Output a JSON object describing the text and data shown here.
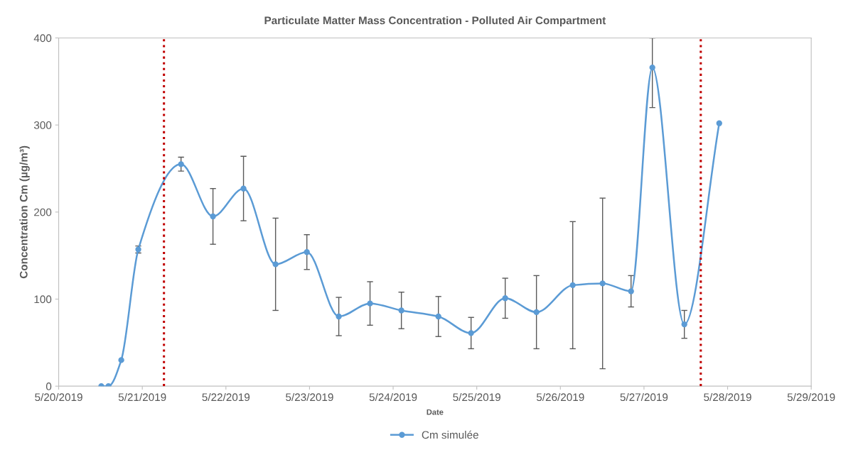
{
  "chart_data": {
    "type": "line",
    "title": "Particulate Matter Mass Concentration - Polluted Air Compartment",
    "xlabel": "Date",
    "ylabel": "Concentration Cm (µg/m³)",
    "x": [
      "2019-05-20T12:14",
      "2019-05-20T14:17",
      "2019-05-20T17:58",
      "2019-05-20T22:51",
      "2019-05-21T11:07",
      "2019-05-21T20:17",
      "2019-05-22T05:03",
      "2019-05-22T14:15",
      "2019-05-22T23:14",
      "2019-05-23T08:24",
      "2019-05-23T17:22",
      "2019-05-24T02:22",
      "2019-05-24T12:59",
      "2019-05-24T22:22",
      "2019-05-25T08:10",
      "2019-05-25T17:08",
      "2019-05-26T03:33",
      "2019-05-26T12:07",
      "2019-05-26T20:17",
      "2019-05-27T02:24",
      "2019-05-27T11:35",
      "2019-05-27T21:36"
    ],
    "series": [
      {
        "name": "Cm simulée",
        "color": "#5b9bd5",
        "values": [
          0,
          0,
          30,
          157,
          255,
          195,
          227,
          140,
          154,
          80,
          95,
          87,
          80,
          61,
          101,
          85,
          116,
          118,
          109,
          366,
          71,
          302
        ],
        "errors": [
          null,
          null,
          null,
          4,
          8,
          32,
          37,
          53,
          20,
          22,
          25,
          21,
          23,
          18,
          23,
          42,
          73,
          98,
          18,
          [
            320,
            400
          ],
          16,
          null
        ]
      }
    ],
    "xlim": [
      "2019-05-20",
      "2019-05-29"
    ],
    "xticks": [
      {
        "value": "2019-05-20",
        "label": "5/20/2019"
      },
      {
        "value": "2019-05-21",
        "label": "5/21/2019"
      },
      {
        "value": "2019-05-22",
        "label": "5/22/2019"
      },
      {
        "value": "2019-05-23",
        "label": "5/23/2019"
      },
      {
        "value": "2019-05-24",
        "label": "5/24/2019"
      },
      {
        "value": "2019-05-25",
        "label": "5/25/2019"
      },
      {
        "value": "2019-05-26",
        "label": "5/26/2019"
      },
      {
        "value": "2019-05-27",
        "label": "5/27/2019"
      },
      {
        "value": "2019-05-28",
        "label": "5/28/2019"
      },
      {
        "value": "2019-05-29",
        "label": "5/29/2019"
      }
    ],
    "ylim": [
      0,
      400
    ],
    "yticks": [
      0,
      100,
      200,
      300,
      400
    ],
    "ref_lines": [
      {
        "axis": "x",
        "value": "2019-05-21T06:13",
        "color": "#c00000",
        "line_style": "dotted"
      },
      {
        "axis": "x",
        "value": "2019-05-27T16:18",
        "color": "#c00000",
        "line_style": "dotted"
      }
    ],
    "grid": false,
    "legend": "bottom",
    "marker": "circle",
    "line_style": "solid"
  }
}
